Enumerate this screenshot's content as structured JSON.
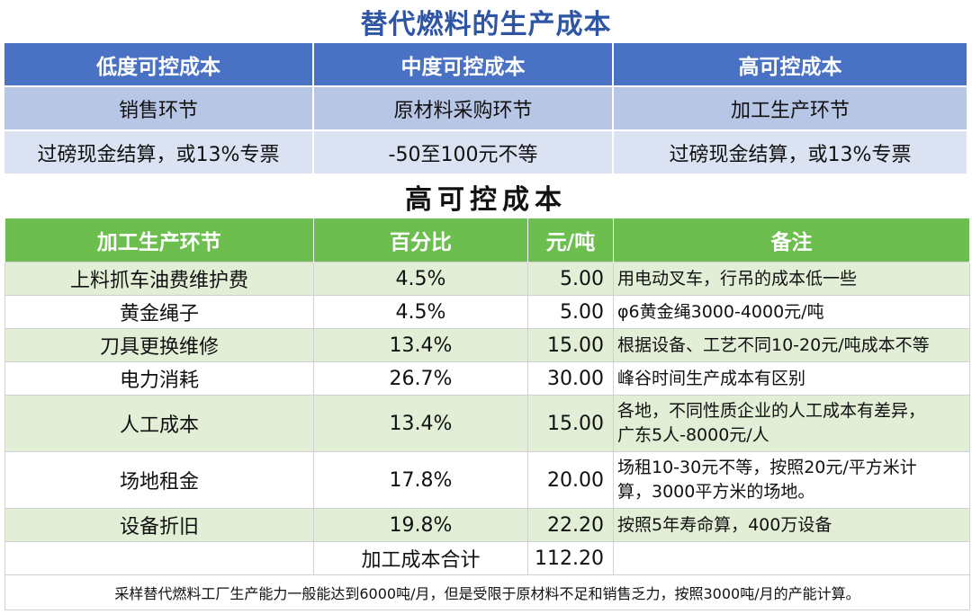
{
  "title_main": "替代燃料的生产成本",
  "top_table": {
    "headers": [
      "低度可控成本",
      "中度可控成本",
      "高可控成本"
    ],
    "row1": [
      "销售环节",
      "原材料采购环节",
      "加工生产环节"
    ],
    "row2": [
      "过磅现金结算，或13%专票",
      "-50至100元不等",
      "过磅现金结算，或13%专票"
    ]
  },
  "title_section": "高可控成本",
  "cost_table": {
    "headers": [
      "加工生产环节",
      "百分比",
      "元/吨",
      "备注"
    ],
    "rows": [
      {
        "item": "上料抓车油费维护费",
        "percent": "4.5%",
        "price": "5.00",
        "note": "用电动叉车，行吊的成本低一些"
      },
      {
        "item": "黄金绳子",
        "percent": "4.5%",
        "price": "5.00",
        "note": "φ6黄金绳3000-4000元/吨"
      },
      {
        "item": "刀具更换维修",
        "percent": "13.4%",
        "price": "15.00",
        "note": "根据设备、工艺不同10-20元/吨成本不等"
      },
      {
        "item": "电力消耗",
        "percent": "26.7%",
        "price": "30.00",
        "note": "峰谷时间生产成本有区别"
      },
      {
        "item": "人工成本",
        "percent": "13.4%",
        "price": "15.00",
        "note_line1": "各地，不同性质企业的人工成本有差异，",
        "note_line2": "广东5人-8000元/人"
      },
      {
        "item": "场地租金",
        "percent": "17.8%",
        "price": "20.00",
        "note_line1": "场租10-30元不等，按照20元/平方米计",
        "note_line2": "算，3000平方米的场地。"
      },
      {
        "item": "设备折旧",
        "percent": "19.8%",
        "price": "22.20",
        "note": "按照5年寿命算，400万设备"
      }
    ],
    "total_label": "加工成本合计",
    "total_value": "112.20",
    "footnote": "采样替代燃料工厂生产能力一般能达到6000吨/月，但是受限于原材料不足和销售乏力，按照3000吨/月的产能计算。"
  },
  "colors": {
    "title_blue": "#2f55a5",
    "top_header_bg": "#4a72c4",
    "top_row1_bg": "#b8c6e6",
    "top_row2_bg": "#dbe3f3",
    "cost_header_bg": "#6cbf4e",
    "cost_alt_bg": "#e2efd6"
  }
}
